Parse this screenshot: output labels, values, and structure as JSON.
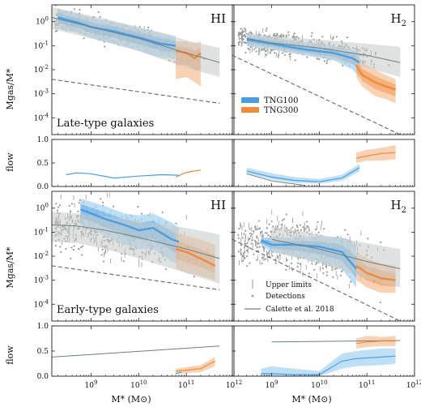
{
  "figure": {
    "shared_xlabel": "M* (M⊙)",
    "ylabel_ratio": "Mgas/M*",
    "ylabel_flow": "flow"
  },
  "colors": {
    "tng100": "#4a9ee0",
    "tng100_band": "#a9d5f0",
    "tng300": "#f08a3c",
    "tng300_band": "#f7c39b",
    "obs_points": "#9a9a9a",
    "calette_line": "#6f7f7f",
    "calette_band": "#c6cbcb",
    "dashed": "#666666"
  },
  "legend": {
    "tng100": "TNG100",
    "tng300": "TNG300",
    "upper_limits": "Upper limits",
    "detections": "Detections",
    "calette": "Calette et al. 2018"
  },
  "chart_data": [
    {
      "id": "late-HI",
      "type": "scatter",
      "panel_label": "HI",
      "annotation": "Late-type galaxies",
      "xscale": "log",
      "yscale": "log",
      "xlim": [
        150000000,
        1000000000000
      ],
      "ylim": [
        2e-05,
        5
      ],
      "ylabel": "Mgas/M*",
      "yticks": [
        "10^-4",
        "10^-3",
        "10^-2",
        "10^-1",
        "10^0"
      ],
      "series": [
        {
          "name": "TNG100",
          "median": [
            [
              200000000,
              1.5
            ],
            [
              500000000,
              0.95
            ],
            [
              1000000000,
              0.6
            ],
            [
              3000000000,
              0.4
            ],
            [
              10000000000,
              0.22
            ],
            [
              30000000000,
              0.12
            ],
            [
              60000000000,
              0.1
            ]
          ],
          "band_lo": [
            0.5,
            0.35,
            0.2,
            0.12,
            0.06,
            0.03,
            0.03
          ],
          "band_hi": [
            3.5,
            2.2,
            1.5,
            1.0,
            0.55,
            0.35,
            0.25
          ]
        },
        {
          "name": "TNG300",
          "median": [
            [
              60000000000,
              0.06
            ],
            [
              100000000000,
              0.05
            ],
            [
              150000000000,
              0.03
            ],
            [
              200000000000,
              0.05
            ]
          ],
          "band_lo": [
            0.004,
            0.005,
            0.003,
            0.002
          ],
          "band_hi": [
            0.15,
            0.15,
            0.12,
            0.15
          ]
        },
        {
          "name": "Calette et al. 2018",
          "line": [
            [
              150000000,
              1.5
            ],
            [
              1000000000,
              0.6
            ],
            [
              10000000000,
              0.2
            ],
            [
              100000000000,
              0.05
            ],
            [
              500000000000,
              0.02
            ]
          ],
          "band_lo": [
            0.5,
            0.2,
            0.06,
            0.012,
            0.005
          ],
          "band_hi": [
            4,
            1.8,
            0.6,
            0.17,
            0.08
          ]
        },
        {
          "name": "dashed",
          "line": [
            [
              150000000,
              0.004
            ],
            [
              500000000000,
              0.0004
            ]
          ]
        }
      ]
    },
    {
      "id": "late-H2",
      "type": "scatter",
      "panel_label": "H2",
      "xscale": "log",
      "yscale": "log",
      "xlim": [
        150000000,
        1000000000000
      ],
      "ylim": [
        2e-05,
        5
      ],
      "series": [
        {
          "name": "TNG100",
          "median": [
            [
              300000000,
              0.18
            ],
            [
              1000000000,
              0.12
            ],
            [
              5000000000,
              0.07
            ],
            [
              20000000000,
              0.05
            ],
            [
              50000000000,
              0.03
            ],
            [
              70000000000,
              0.02
            ]
          ],
          "band_lo": [
            0.1,
            0.07,
            0.04,
            0.025,
            0.01,
            0.005
          ],
          "band_hi": [
            0.3,
            0.22,
            0.14,
            0.1,
            0.07,
            0.05
          ]
        },
        {
          "name": "TNG300",
          "median": [
            [
              60000000000,
              0.015
            ],
            [
              80000000000,
              0.006
            ],
            [
              150000000000,
              0.003
            ],
            [
              250000000000,
              0.002
            ],
            [
              400000000000,
              0.0015
            ]
          ],
          "band_lo": [
            0.005,
            0.002,
            0.0008,
            0.0006,
            0.0004
          ],
          "band_hi": [
            0.04,
            0.02,
            0.01,
            0.006,
            0.004
          ]
        },
        {
          "name": "Calette et al. 2018",
          "line": [
            [
              300000000,
              0.2
            ],
            [
              1000000000,
              0.13
            ],
            [
              10000000000,
              0.08
            ],
            [
              100000000000,
              0.04
            ],
            [
              500000000000,
              0.02
            ]
          ],
          "band_lo": [
            0.12,
            0.07,
            0.035,
            0.012,
            0.005
          ],
          "band_hi": [
            0.35,
            0.25,
            0.18,
            0.12,
            0.09
          ]
        },
        {
          "name": "dashed",
          "line": [
            [
              150000000,
              0.04
            ],
            [
              500000000000,
              2e-05
            ]
          ]
        }
      ]
    },
    {
      "id": "late-flow-HI",
      "type": "line",
      "ylabel": "flow",
      "xscale": "log",
      "xlim": [
        150000000,
        1000000000000
      ],
      "ylim": [
        0,
        1
      ],
      "yticks": [
        "0.0",
        "0.5",
        "1.0"
      ],
      "series": [
        {
          "name": "TNG100",
          "x": [
            300000000,
            500000000,
            1000000000,
            3000000000,
            10000000000,
            30000000000,
            70000000000
          ],
          "y": [
            0.25,
            0.29,
            0.27,
            0.18,
            0.22,
            0.25,
            0.24
          ]
        },
        {
          "name": "TNG300",
          "x": [
            60000000000,
            100000000000,
            200000000000
          ],
          "y": [
            0.2,
            0.3,
            0.35
          ]
        }
      ]
    },
    {
      "id": "late-flow-H2",
      "type": "line",
      "xscale": "log",
      "xlim": [
        150000000,
        1000000000000
      ],
      "ylim": [
        0,
        1
      ],
      "series": [
        {
          "name": "TNG100",
          "x": [
            300000000,
            1000000000,
            3000000000,
            10000000000,
            30000000000,
            70000000000
          ],
          "y": [
            0.33,
            0.2,
            0.13,
            0.1,
            0.18,
            0.4
          ],
          "band_lo": [
            0.28,
            0.15,
            0.08,
            0.06,
            0.12,
            0.32
          ],
          "band_hi": [
            0.4,
            0.28,
            0.2,
            0.16,
            0.25,
            0.48
          ]
        },
        {
          "name": "TNG300",
          "x": [
            60000000000,
            100000000000,
            200000000000,
            400000000000
          ],
          "y": [
            0.6,
            0.65,
            0.7,
            0.72
          ],
          "band_lo": [
            0.5,
            0.55,
            0.55,
            0.58
          ],
          "band_hi": [
            0.72,
            0.78,
            0.82,
            0.88
          ]
        },
        {
          "name": "Calette et al. 2018",
          "x": [
            300000000,
            1000000000,
            5000000000
          ],
          "y": [
            0.27,
            0.12,
            0.02
          ]
        }
      ]
    },
    {
      "id": "early-HI",
      "type": "scatter",
      "panel_label": "HI",
      "annotation": "Early-type galaxies",
      "ylabel": "Mgas/M*",
      "xscale": "log",
      "yscale": "log",
      "xlim": [
        150000000,
        1000000000000
      ],
      "ylim": [
        2e-05,
        5
      ],
      "yticks": [
        "10^-4",
        "10^-3",
        "10^-2",
        "10^-1",
        "10^0"
      ],
      "series": [
        {
          "name": "TNG100",
          "median": [
            [
              600000000,
              0.9
            ],
            [
              2000000000,
              0.35
            ],
            [
              5000000000,
              0.2
            ],
            [
              10000000000,
              0.12
            ],
            [
              20000000000,
              0.15
            ],
            [
              50000000000,
              0.05
            ],
            [
              70000000000,
              0.04
            ]
          ],
          "band_lo": [
            0.2,
            0.07,
            0.03,
            0.02,
            0.02,
            0.006,
            0.005
          ],
          "band_hi": [
            2.5,
            1.2,
            0.6,
            0.5,
            0.6,
            0.25,
            0.15
          ]
        },
        {
          "name": "TNG300",
          "median": [
            [
              60000000000,
              0.02
            ],
            [
              100000000000,
              0.015
            ],
            [
              200000000000,
              0.008
            ],
            [
              400000000000,
              0.004
            ]
          ],
          "band_lo": [
            0.003,
            0.002,
            0.0015,
            0.001
          ],
          "band_hi": [
            0.1,
            0.07,
            0.05,
            0.03
          ]
        },
        {
          "name": "Calette et al. 2018",
          "line": [
            [
              150000000,
              0.2
            ],
            [
              500000000,
              0.18
            ],
            [
              2000000000,
              0.12
            ],
            [
              10000000000,
              0.06
            ],
            [
              100000000000,
              0.02
            ],
            [
              500000000000,
              0.008
            ]
          ],
          "band_lo": [
            0.04,
            0.035,
            0.02,
            0.008,
            0.002,
            0.0007
          ],
          "band_hi": [
            0.7,
            0.6,
            0.45,
            0.3,
            0.15,
            0.08
          ]
        },
        {
          "name": "dashed",
          "line": [
            [
              150000000,
              0.004
            ],
            [
              500000000000,
              0.0004
            ]
          ]
        }
      ]
    },
    {
      "id": "early-H2",
      "type": "scatter",
      "panel_label": "H2",
      "xscale": "log",
      "yscale": "log",
      "xlim": [
        150000000,
        1000000000000
      ],
      "ylim": [
        2e-05,
        5
      ],
      "series": [
        {
          "name": "TNG100",
          "median": [
            [
              600000000,
              0.045
            ],
            [
              1000000000,
              0.03
            ],
            [
              3000000000,
              0.03
            ],
            [
              10000000000,
              0.025
            ],
            [
              30000000000,
              0.015
            ],
            [
              60000000000,
              0.003
            ]
          ],
          "band_lo": [
            0.03,
            0.015,
            0.01,
            0.006,
            0.003,
            0.0005
          ],
          "band_hi": [
            0.06,
            0.06,
            0.06,
            0.07,
            0.06,
            0.03
          ]
        },
        {
          "name": "TNG300",
          "median": [
            [
              60000000000,
              0.004
            ],
            [
              100000000000,
              0.002
            ],
            [
              200000000000,
              0.0012
            ],
            [
              400000000000,
              0.001
            ]
          ],
          "band_lo": [
            0.001,
            0.0005,
            0.0003,
            0.0003
          ],
          "band_hi": [
            0.015,
            0.008,
            0.005,
            0.004
          ]
        },
        {
          "name": "Calette et al. 2018",
          "line": [
            [
              1000000000,
              0.05
            ],
            [
              10000000000,
              0.02
            ],
            [
              100000000000,
              0.006
            ],
            [
              500000000000,
              0.003
            ]
          ],
          "band_lo": [
            0.015,
            0.005,
            0.0012,
            0.0005
          ],
          "band_hi": [
            0.18,
            0.08,
            0.035,
            0.02
          ]
        },
        {
          "name": "dashed",
          "line": [
            [
              150000000,
              0.05
            ],
            [
              500000000000,
              2e-05
            ]
          ]
        }
      ]
    },
    {
      "id": "early-flow-HI",
      "type": "line",
      "ylabel": "flow",
      "xlabel": "M* (M⊙)",
      "xscale": "log",
      "xlim": [
        150000000,
        1000000000000
      ],
      "ylim": [
        0,
        1
      ],
      "yticks": [
        "0.0",
        "0.5",
        "1.0"
      ],
      "xticks": [
        "10^9",
        "10^10",
        "10^11",
        "10^12"
      ],
      "series": [
        {
          "name": "Calette et al. 2018",
          "x": [
            150000000,
            500000000000
          ],
          "y": [
            0.38,
            0.6
          ]
        },
        {
          "name": "TNG300",
          "x": [
            60000000000,
            100000000000,
            200000000000,
            400000000000
          ],
          "y": [
            0.1,
            0.12,
            0.15,
            0.3
          ],
          "band_lo": [
            0.05,
            0.06,
            0.08,
            0.2
          ],
          "band_hi": [
            0.15,
            0.18,
            0.22,
            0.38
          ]
        },
        {
          "name": "TNG100",
          "x": [
            60000000000,
            80000000000
          ],
          "y": [
            0.05,
            0.08
          ]
        }
      ]
    },
    {
      "id": "early-flow-H2",
      "type": "line",
      "xlabel": "M* (M⊙)",
      "xscale": "log",
      "xlim": [
        150000000,
        1000000000000
      ],
      "ylim": [
        0,
        1
      ],
      "xticks": [
        "10^9",
        "10^10",
        "10^11",
        "10^12"
      ],
      "series": [
        {
          "name": "Calette et al. 2018",
          "x": [
            1000000000,
            500000000000
          ],
          "y": [
            0.68,
            0.71
          ]
        },
        {
          "name": "TNG100",
          "x": [
            600000000,
            1000000000,
            3000000000,
            10000000000,
            30000000000,
            60000000000,
            200000000000,
            400000000000
          ],
          "y": [
            0.05,
            0.05,
            0.03,
            0.03,
            0.3,
            0.35,
            0.38,
            0.4
          ],
          "band_lo": [
            0.0,
            0.0,
            0.0,
            0.0,
            0.15,
            0.2,
            0.22,
            0.25
          ],
          "band_hi": [
            0.15,
            0.2,
            0.15,
            0.1,
            0.45,
            0.5,
            0.55,
            0.55
          ]
        },
        {
          "name": "TNG300",
          "x": [
            60000000000,
            100000000000,
            200000000000,
            400000000000
          ],
          "y": [
            0.65,
            0.68,
            0.7,
            0.7
          ],
          "band_lo": [
            0.55,
            0.58,
            0.6,
            0.6
          ],
          "band_hi": [
            0.75,
            0.8,
            0.78,
            0.8
          ]
        }
      ]
    }
  ]
}
